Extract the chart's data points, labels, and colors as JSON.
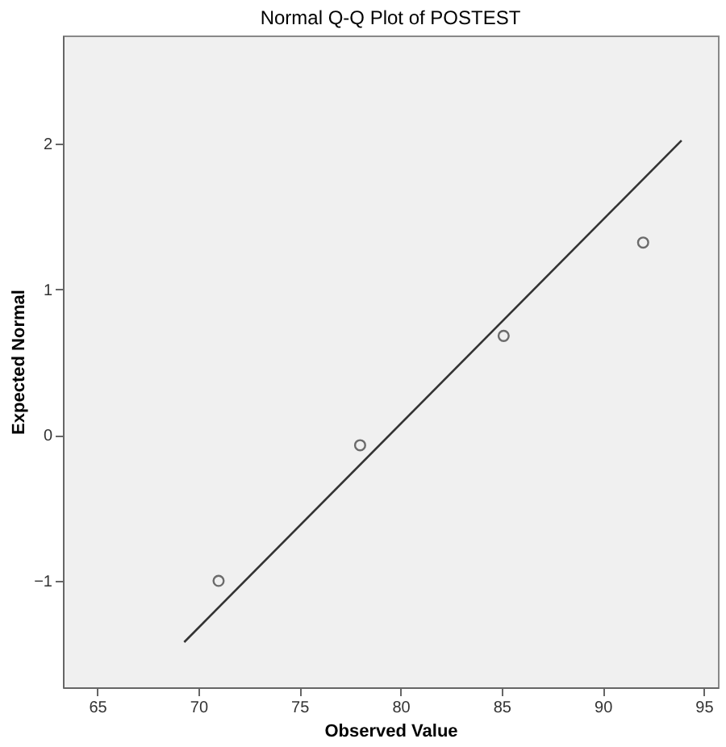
{
  "chart_data": {
    "type": "scatter",
    "title": "Normal Q-Q Plot of POSTEST",
    "xlabel": "Observed Value",
    "ylabel": "Expected Normal",
    "series": [
      {
        "color": "#333333",
        "marker": "circle",
        "x": [
          71.0,
          78.0,
          85.1,
          92.0
        ],
        "values": [
          -1.0,
          -0.07,
          0.68,
          1.32
        ]
      },
      {
        "type": "line",
        "color": "#333333",
        "marker": "none",
        "x": [
          69.3,
          93.9
        ],
        "values": [
          -1.42,
          2.02
        ]
      }
    ],
    "xlim": [
      63.3,
      95.7
    ],
    "xticks": [
      65,
      70,
      75,
      80,
      85,
      90,
      95
    ],
    "ylim": [
      -1.73,
      2.74
    ],
    "yticks": [
      -1,
      0,
      1,
      2
    ],
    "line_style": "solid"
  }
}
